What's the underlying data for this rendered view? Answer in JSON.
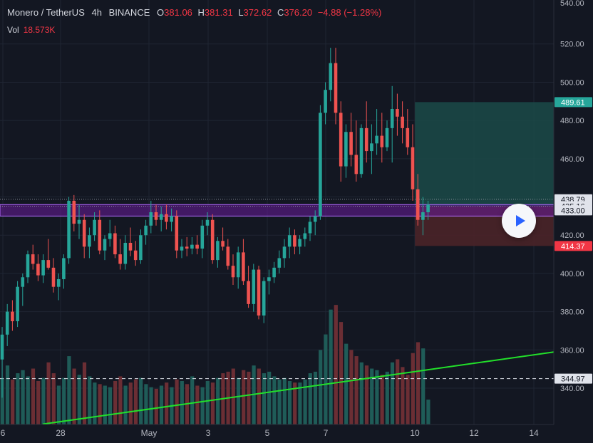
{
  "legend": {
    "symbol": "Monero / TetherUS",
    "interval": "4h",
    "exchange": "BINANCE",
    "o_label": "O",
    "open": "381.06",
    "h_label": "H",
    "high": "381.31",
    "l_label": "L",
    "low": "372.62",
    "c_label": "C",
    "close": "376.20",
    "change": "−4.88 (−1.28%)"
  },
  "volume": {
    "label": "Vol",
    "value": "18.573K"
  },
  "colors": {
    "background": "#131722",
    "up": "#26a69a",
    "down": "#ef5350",
    "trendline": "#22e02a",
    "zone_fill": "#6a1b9a",
    "zone_border": "#b36bff",
    "profit_box": "#1b4a48",
    "loss_box": "#4a2428",
    "target_label": "#26a69a",
    "stop_label": "#f23645"
  },
  "play_button": {
    "icon": "play-icon"
  },
  "chart_data": {
    "type": "candlestick",
    "y_axis": {
      "range": [
        321,
        543
      ],
      "ticks": [
        340,
        360,
        380,
        400,
        420,
        440,
        460,
        480,
        500,
        520
      ],
      "tick_labels": [
        "340.00",
        "360.00",
        "380.00",
        "400.00",
        "420.00",
        "440.00",
        "460.00",
        "480.00",
        "500.00",
        "520.00"
      ],
      "top_partial_label": "540.00"
    },
    "x_axis": {
      "labels": [
        "6",
        "28",
        "May",
        "3",
        "5",
        "7",
        "10",
        "12",
        "14"
      ]
    },
    "price_labels": [
      {
        "value": 489.61,
        "text": "489.61",
        "kind": "target"
      },
      {
        "value": 438.79,
        "text": "438.79",
        "kind": "plain"
      },
      {
        "value": 435.16,
        "text": "435.16",
        "kind": "plain"
      },
      {
        "value": 433.0,
        "text": "433.00",
        "kind": "plain"
      },
      {
        "value": 414.37,
        "text": "414.37",
        "kind": "stop"
      },
      {
        "value": 344.97,
        "text": "344.97",
        "kind": "plain"
      }
    ],
    "horizontal_zone": {
      "top": 436.0,
      "bottom": 430.0
    },
    "dotted_lines": [
      438.79,
      435.16
    ],
    "dashed_line": 344.97,
    "position_box": {
      "entry": 435.16,
      "target": 489.61,
      "stop": 414.37
    },
    "trendline": {
      "from_price": 321.2,
      "to_price": 358.9
    },
    "candles_ohlc": [
      [
        355,
        372,
        335,
        368
      ],
      [
        368,
        384,
        362,
        380
      ],
      [
        380,
        386,
        370,
        375
      ],
      [
        375,
        396,
        372,
        393
      ],
      [
        393,
        400,
        383,
        398
      ],
      [
        398,
        412,
        395,
        410
      ],
      [
        410,
        415,
        402,
        405
      ],
      [
        405,
        410,
        396,
        399
      ],
      [
        399,
        410,
        395,
        407
      ],
      [
        407,
        418,
        402,
        403
      ],
      [
        403,
        408,
        390,
        393
      ],
      [
        393,
        400,
        386,
        397
      ],
      [
        397,
        410,
        392,
        408
      ],
      [
        408,
        440,
        405,
        438
      ],
      [
        438,
        441,
        422,
        426
      ],
      [
        426,
        436,
        418,
        428
      ],
      [
        428,
        431,
        408,
        414
      ],
      [
        414,
        424,
        408,
        420
      ],
      [
        420,
        432,
        417,
        428
      ],
      [
        428,
        433,
        410,
        412
      ],
      [
        412,
        420,
        407,
        418
      ],
      [
        418,
        428,
        414,
        421
      ],
      [
        421,
        425,
        408,
        410
      ],
      [
        410,
        418,
        402,
        405
      ],
      [
        405,
        420,
        402,
        416
      ],
      [
        416,
        424,
        409,
        412
      ],
      [
        412,
        417,
        404,
        407
      ],
      [
        407,
        423,
        405,
        420
      ],
      [
        420,
        428,
        415,
        425
      ],
      [
        425,
        438,
        421,
        432
      ],
      [
        432,
        436,
        425,
        428
      ],
      [
        428,
        435,
        422,
        431
      ],
      [
        431,
        436,
        423,
        427
      ],
      [
        427,
        434,
        422,
        430
      ],
      [
        430,
        433,
        408,
        412
      ],
      [
        412,
        418,
        408,
        414
      ],
      [
        414,
        419,
        409,
        413
      ],
      [
        413,
        419,
        410,
        415
      ],
      [
        415,
        420,
        410,
        413
      ],
      [
        413,
        428,
        408,
        425
      ],
      [
        425,
        432,
        420,
        428
      ],
      [
        428,
        431,
        405,
        407
      ],
      [
        407,
        419,
        403,
        417
      ],
      [
        417,
        424,
        412,
        414
      ],
      [
        414,
        418,
        402,
        404
      ],
      [
        404,
        410,
        394,
        398
      ],
      [
        398,
        414,
        392,
        411
      ],
      [
        411,
        418,
        394,
        396
      ],
      [
        396,
        404,
        382,
        384
      ],
      [
        384,
        405,
        380,
        402
      ],
      [
        402,
        404,
        376,
        378
      ],
      [
        378,
        398,
        374,
        396
      ],
      [
        396,
        402,
        389,
        398
      ],
      [
        398,
        406,
        395,
        403
      ],
      [
        403,
        412,
        400,
        408
      ],
      [
        408,
        418,
        403,
        414
      ],
      [
        414,
        424,
        408,
        420
      ],
      [
        420,
        423,
        410,
        414
      ],
      [
        414,
        420,
        410,
        418
      ],
      [
        418,
        424,
        414,
        421
      ],
      [
        421,
        430,
        417,
        427
      ],
      [
        427,
        433,
        420,
        430
      ],
      [
        430,
        488,
        428,
        484
      ],
      [
        484,
        500,
        478,
        496
      ],
      [
        496,
        518,
        490,
        510
      ],
      [
        510,
        518,
        478,
        484
      ],
      [
        484,
        490,
        448,
        456
      ],
      [
        456,
        478,
        450,
        474
      ],
      [
        474,
        484,
        456,
        462
      ],
      [
        462,
        480,
        448,
        452
      ],
      [
        452,
        478,
        450,
        476
      ],
      [
        476,
        490,
        458,
        464
      ],
      [
        464,
        478,
        452,
        468
      ],
      [
        468,
        486,
        462,
        472
      ],
      [
        472,
        484,
        458,
        466
      ],
      [
        466,
        480,
        464,
        476
      ],
      [
        476,
        498,
        458,
        486
      ],
      [
        486,
        494,
        472,
        482
      ],
      [
        482,
        490,
        468,
        476
      ],
      [
        476,
        486,
        462,
        466
      ],
      [
        466,
        478,
        438,
        444
      ],
      [
        444,
        452,
        425,
        428
      ],
      [
        428,
        440,
        420,
        432
      ],
      [
        432,
        438,
        428,
        436
      ]
    ],
    "volumes": [
      0.3,
      0.38,
      0.29,
      0.33,
      0.35,
      0.31,
      0.36,
      0.28,
      0.3,
      0.4,
      0.33,
      0.25,
      0.3,
      0.44,
      0.36,
      0.32,
      0.4,
      0.31,
      0.27,
      0.26,
      0.25,
      0.24,
      0.28,
      0.31,
      0.25,
      0.27,
      0.29,
      0.3,
      0.26,
      0.24,
      0.23,
      0.25,
      0.27,
      0.24,
      0.29,
      0.28,
      0.26,
      0.31,
      0.25,
      0.24,
      0.28,
      0.27,
      0.3,
      0.33,
      0.34,
      0.36,
      0.3,
      0.35,
      0.34,
      0.38,
      0.36,
      0.33,
      0.34,
      0.31,
      0.29,
      0.3,
      0.28,
      0.27,
      0.27,
      0.29,
      0.33,
      0.34,
      0.48,
      0.58,
      0.74,
      0.77,
      0.66,
      0.52,
      0.48,
      0.44,
      0.4,
      0.38,
      0.36,
      0.35,
      0.32,
      0.34,
      0.4,
      0.42,
      0.37,
      0.32,
      0.46,
      0.53,
      0.49,
      0.16
    ]
  }
}
